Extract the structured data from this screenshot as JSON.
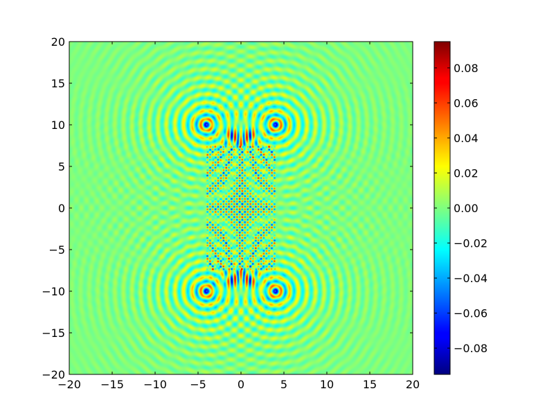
{
  "chart_data": {
    "type": "heatmap",
    "title": "",
    "xlabel": "",
    "ylabel": "",
    "xlim": [
      -20,
      20
    ],
    "ylim": [
      -20,
      20
    ],
    "x_ticks": [
      "−20",
      "−15",
      "−10",
      "−5",
      "0",
      "5",
      "10",
      "15",
      "20"
    ],
    "y_ticks": [
      "20",
      "15",
      "10",
      "5",
      "0",
      "−5",
      "−10",
      "−15",
      "−20"
    ],
    "colormap": "jet",
    "background_value": 0.0,
    "colorbar": {
      "min": -0.095,
      "max": 0.095,
      "ticks": [
        "0.08",
        "0.06",
        "0.04",
        "0.02",
        "0.00",
        "−0.02",
        "−0.04",
        "−0.06",
        "−0.08"
      ],
      "tick_values": [
        0.08,
        0.06,
        0.04,
        0.02,
        0.0,
        -0.02,
        -0.04,
        -0.06,
        -0.08
      ],
      "placement": "right"
    },
    "colors": {
      "jet_dark_blue": "#00007f",
      "jet_blue": "#0000ff",
      "jet_cyan": "#00ffff",
      "jet_green": "#7fff7f",
      "jet_yellow": "#ffff00",
      "jet_red": "#ff0000",
      "jet_dark_red": "#7f0000"
    },
    "features": {
      "dense_interference_region": {
        "x_range": [
          -4,
          4
        ],
        "y_range": [
          -7.5,
          7.5
        ]
      },
      "point_sources": [
        [
          -4,
          10
        ],
        [
          4,
          10
        ],
        [
          -4,
          -10
        ],
        [
          4,
          -10
        ]
      ],
      "wave_wavelength": 1.0,
      "peak_amplitude": 0.095
    }
  }
}
